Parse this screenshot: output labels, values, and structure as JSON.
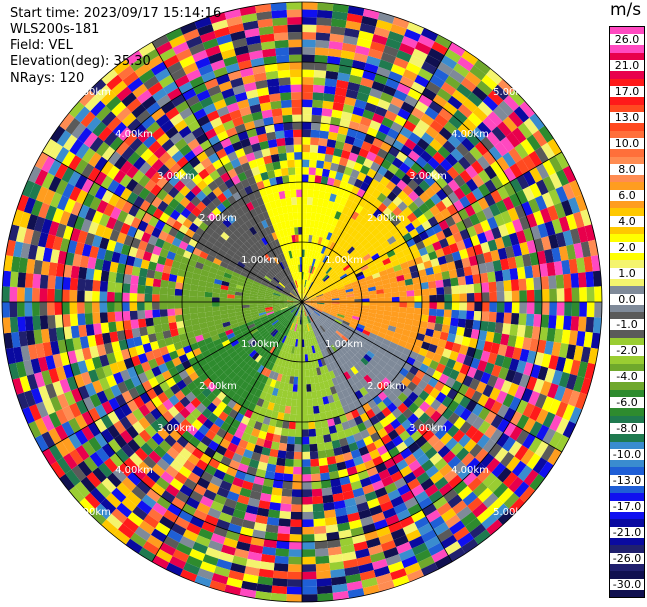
{
  "header": {
    "start_time": "Start time: 2023/09/17 15:14:16",
    "instrument": "WLS200s-181",
    "field": "Field: VEL",
    "elevation": "Elevation(deg): 35.30",
    "nrays": "NRays: 120"
  },
  "chart_data": {
    "type": "heatmap",
    "projection": "ppi-polar",
    "field": "VEL",
    "units": "m/s",
    "nrays": 120,
    "range_rings": {
      "labels": [
        "1.00km",
        "2.00km",
        "3.00km",
        "4.00km",
        "5.00km"
      ],
      "label_count_per_ring": 4
    },
    "colorbar": {
      "unit": "m/s",
      "ticks": [
        26.0,
        21.0,
        17.0,
        13.0,
        10.0,
        8.0,
        6.0,
        4.0,
        2.0,
        1.0,
        0.0,
        -1.0,
        -2.0,
        -4.0,
        -6.0,
        -8.0,
        -10.0,
        -13.0,
        -17.0,
        -21.0,
        -26.0,
        -30.0
      ],
      "tick_labels": [
        "26.0",
        "21.0",
        "17.0",
        "13.0",
        "10.0",
        "8.0",
        "6.0",
        "4.0",
        "2.0",
        "1.0",
        "0.0",
        "-1.0",
        "-2.0",
        "-4.0",
        "-6.0",
        "-8.0",
        "-10.0",
        "-13.0",
        "-17.0",
        "-21.0",
        "-26.0",
        "-30.0"
      ],
      "colors": [
        "#ff49c0",
        "#e8004c",
        "#ff1a1a",
        "#ff4a20",
        "#ff6f3a",
        "#ff8c52",
        "#ff9d1f",
        "#ffc800",
        "#ffff00",
        "#f4f46e",
        "#7f8a99",
        "#5a5a5a",
        "#9acd32",
        "#6fa82c",
        "#2e8b2e",
        "#1f7a4f",
        "#3a8ccf",
        "#1f5fd6",
        "#1010f0",
        "#0a0aa0",
        "#20206e",
        "#101050"
      ]
    },
    "near_field_pattern": {
      "sector_colors": [
        "#ffff00",
        "#ffd700",
        "#ff9d1f",
        "#7f8a99",
        "#9acd32",
        "#2e8b2e",
        "#6fa82c",
        "#5a5a5a"
      ]
    }
  }
}
